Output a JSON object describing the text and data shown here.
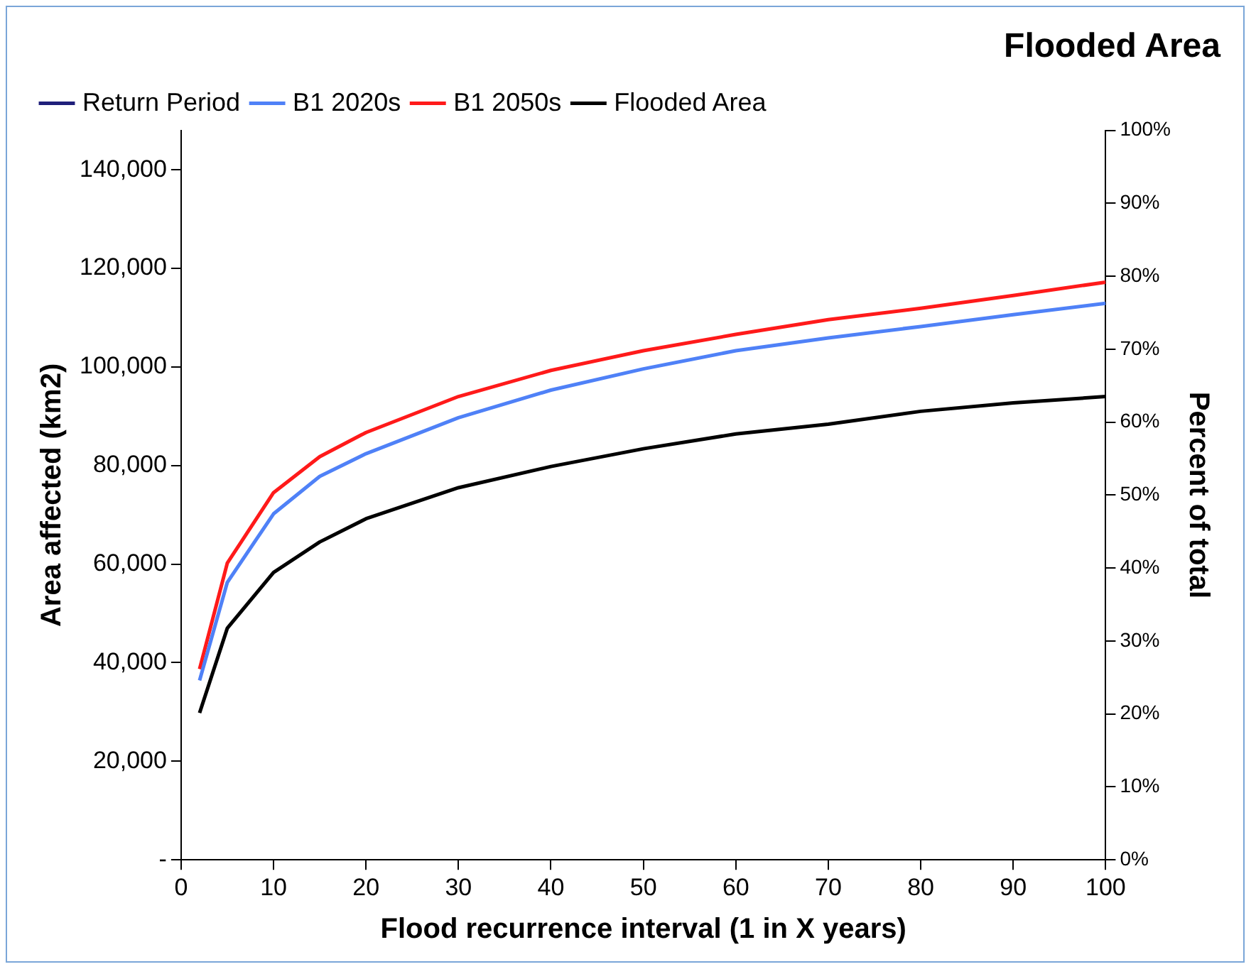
{
  "chart_data": {
    "type": "line",
    "title": "Flooded Area",
    "xlabel": "Flood recurrence interval (1 in X years)",
    "ylabel": "Area affected (km2)",
    "y2label": "Percent of total",
    "x": [
      2,
      5,
      10,
      15,
      20,
      30,
      40,
      50,
      60,
      70,
      80,
      90,
      100
    ],
    "series": [
      {
        "name": "Return Period",
        "color": "#1f1f7a",
        "values": [
          null,
          null,
          null,
          null,
          null,
          null,
          null,
          null,
          null,
          null,
          null,
          null,
          null
        ]
      },
      {
        "name": "B1 2020s",
        "color": "#4f81f7",
        "values": [
          36400,
          56300,
          70200,
          77800,
          82400,
          89700,
          95300,
          99600,
          103300,
          105900,
          108200,
          110600,
          112900
        ]
      },
      {
        "name": "B1 2050s",
        "color": "#ff1a1a",
        "values": [
          38700,
          60200,
          74500,
          81800,
          86700,
          94000,
          99300,
          103300,
          106600,
          109600,
          111900,
          114500,
          117200
        ]
      },
      {
        "name": "Flooded Area",
        "color": "#000000",
        "values": [
          29800,
          47000,
          58300,
          64500,
          69200,
          75500,
          79800,
          83400,
          86400,
          88400,
          91000,
          92700,
          94000
        ]
      }
    ],
    "xlim": [
      0,
      100
    ],
    "xticks": [
      0,
      10,
      20,
      30,
      40,
      50,
      60,
      70,
      80,
      90,
      100
    ],
    "ylim": [
      0,
      148000
    ],
    "yticks": [
      {
        "value": 0,
        "label": "-"
      },
      {
        "value": 20000,
        "label": "20,000"
      },
      {
        "value": 40000,
        "label": "40,000"
      },
      {
        "value": 60000,
        "label": "60,000"
      },
      {
        "value": 80000,
        "label": "80,000"
      },
      {
        "value": 100000,
        "label": "100,000"
      },
      {
        "value": 120000,
        "label": "120,000"
      },
      {
        "value": 140000,
        "label": "140,000"
      }
    ],
    "y2lim": [
      0,
      100
    ],
    "y2ticks": [
      {
        "value": 0,
        "label": "0%"
      },
      {
        "value": 10,
        "label": "10%"
      },
      {
        "value": 20,
        "label": "20%"
      },
      {
        "value": 30,
        "label": "30%"
      },
      {
        "value": 40,
        "label": "40%"
      },
      {
        "value": 50,
        "label": "50%"
      },
      {
        "value": 60,
        "label": "60%"
      },
      {
        "value": 70,
        "label": "70%"
      },
      {
        "value": 80,
        "label": "80%"
      },
      {
        "value": 90,
        "label": "90%"
      },
      {
        "value": 100,
        "label": "100%"
      }
    ],
    "grid": false,
    "legend": "top left",
    "marker": "none",
    "line_style": "solid"
  }
}
